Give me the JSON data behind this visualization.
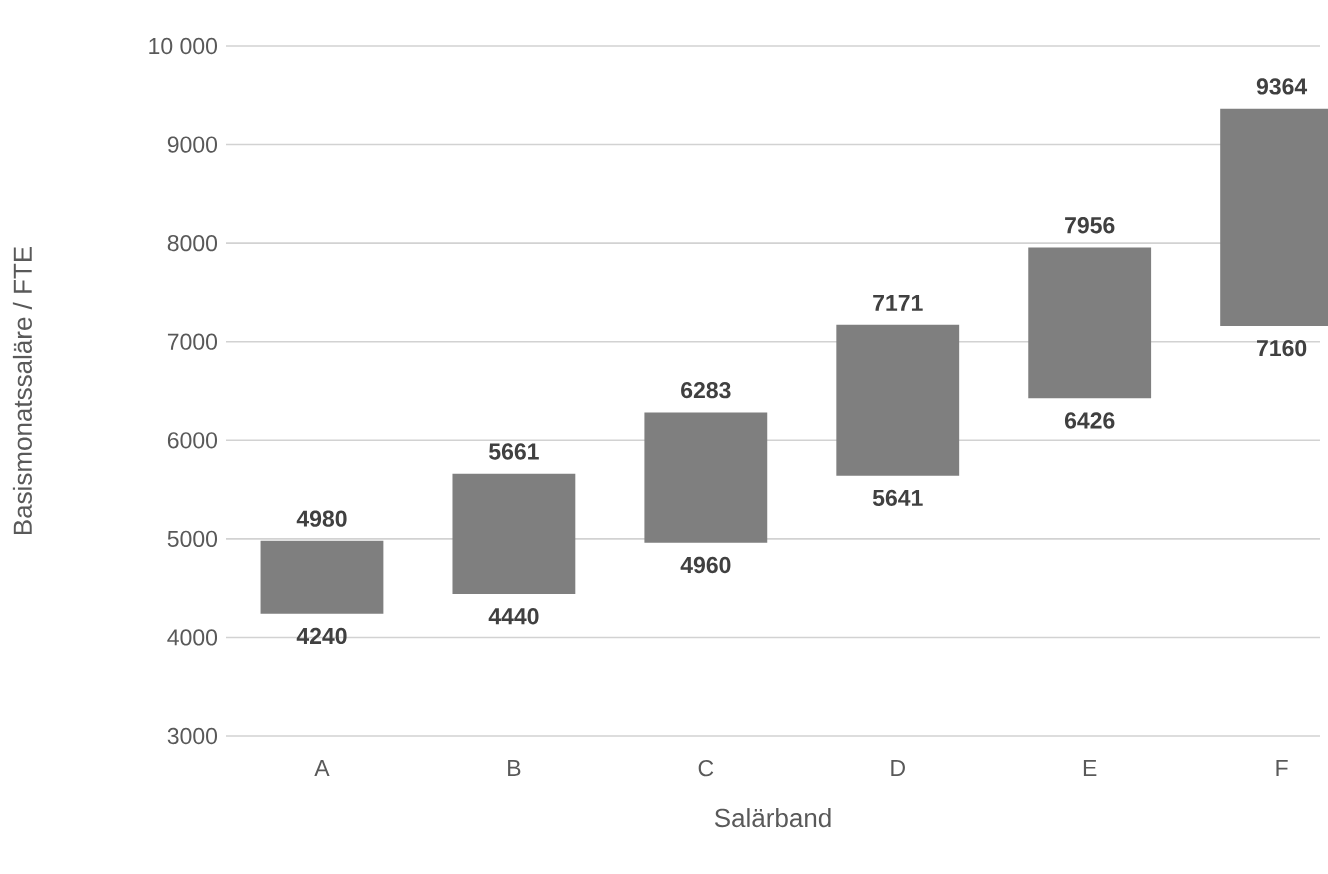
{
  "chart_data": {
    "type": "bar",
    "categories": [
      "A",
      "B",
      "C",
      "D",
      "E",
      "F"
    ],
    "base": [
      4240,
      4440,
      4960,
      5641,
      6426,
      7160
    ],
    "values": [
      740,
      1221,
      1323,
      1530,
      1530,
      2204
    ],
    "color": "#7f7f7f",
    "xlabel": "Salärband",
    "ylabel": "Basismonatssaläre / FTE",
    "ylim": [
      3000,
      10000
    ],
    "yticks": [
      3000,
      4000,
      5000,
      6000,
      7000,
      8000,
      9000,
      {
        "value": 10000,
        "label": "10 000"
      }
    ],
    "grid": "y",
    "annotations": [
      {
        "text": "4980",
        "x": "A",
        "y": 4980
      },
      {
        "text": "4240",
        "x": "A",
        "y": 4240
      },
      {
        "text": "5661",
        "x": "B",
        "y": 5661
      },
      {
        "text": "4440",
        "x": "B",
        "y": 4440
      },
      {
        "text": "6283",
        "x": "C",
        "y": 6283
      },
      {
        "text": "4960",
        "x": "C",
        "y": 4960
      },
      {
        "text": "7171",
        "x": "D",
        "y": 7171
      },
      {
        "text": "5641",
        "x": "D",
        "y": 5641
      },
      {
        "text": "7956",
        "x": "E",
        "y": 7956
      },
      {
        "text": "6426",
        "x": "E",
        "y": 6426
      },
      {
        "text": "9364",
        "x": "F",
        "y": 9364
      },
      {
        "text": "7160",
        "x": "F",
        "y": 7160
      }
    ]
  }
}
